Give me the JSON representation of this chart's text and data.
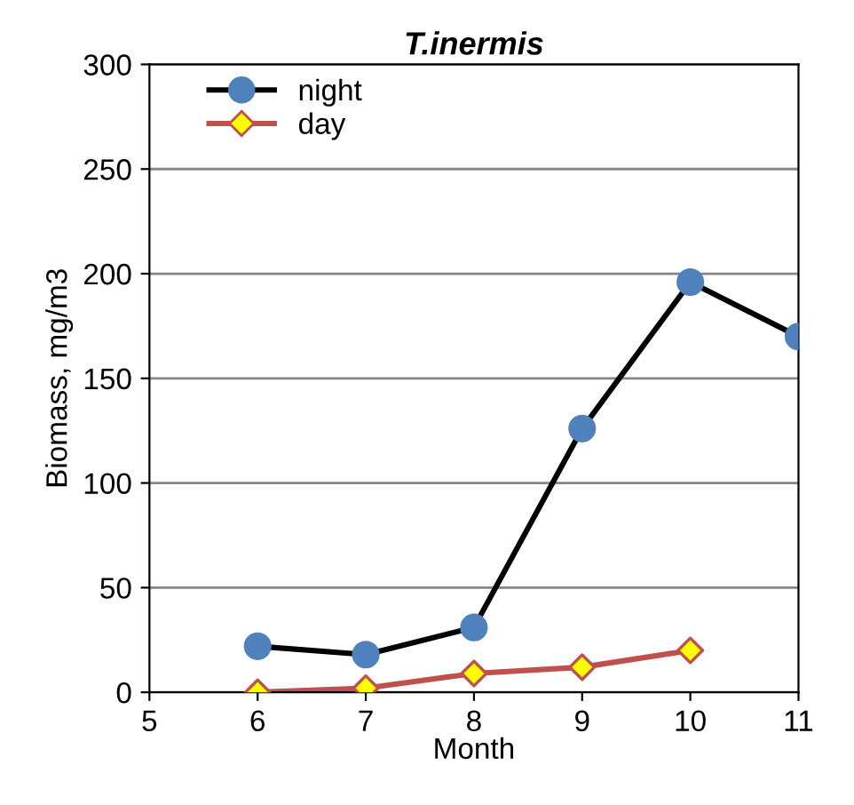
{
  "chart_data": {
    "type": "line",
    "title": "T.inermis",
    "xlabel": "Month",
    "ylabel": "Biomass, mg/m3",
    "x": [
      6,
      7,
      8,
      9,
      10,
      11
    ],
    "series": [
      {
        "name": "night",
        "color": "#000000",
        "colors": [
          "#4f81bd",
          "#4f81bd",
          "#4f81bd",
          "#4f81bd",
          "#4f81bd",
          "#4f81bd"
        ],
        "marker": "circle",
        "values": [
          22,
          18,
          31,
          126,
          196,
          170
        ]
      },
      {
        "name": "day",
        "color": "#c0504d",
        "colors": [
          "#ffff00",
          "#ffff00",
          "#ffff00",
          "#ffff00",
          "#ffff00"
        ],
        "marker": "diamond",
        "x": [
          6,
          7,
          8,
          9,
          10
        ],
        "values": [
          0,
          2,
          9,
          12,
          20
        ]
      }
    ],
    "xlim": [
      5,
      11
    ],
    "xticks": [
      5,
      6,
      7,
      8,
      9,
      10,
      11
    ],
    "ylim": [
      0,
      300
    ],
    "yticks": [
      0,
      50,
      100,
      150,
      200,
      250,
      300
    ],
    "grid": "y",
    "legend": "top left"
  }
}
